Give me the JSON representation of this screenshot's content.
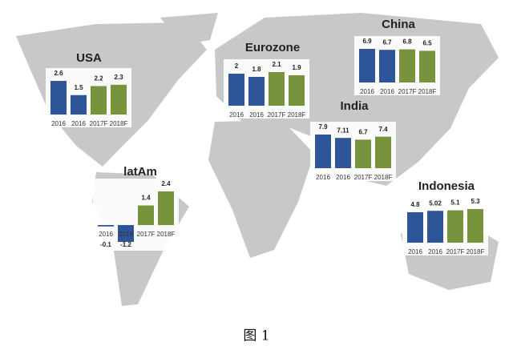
{
  "chart_data": [
    {
      "type": "bar",
      "title": "USA",
      "categories": [
        "2016",
        "2016",
        "2017F",
        "2018F"
      ],
      "values": [
        2.6,
        1.5,
        2.2,
        2.3
      ],
      "colors": [
        "#2e5597",
        "#2e5597",
        "#77933c",
        "#77933c"
      ]
    },
    {
      "type": "bar",
      "title": "Eurozone",
      "categories": [
        "2016",
        "2016",
        "2017F",
        "2018F"
      ],
      "values": [
        2,
        1.8,
        2.1,
        1.9
      ],
      "colors": [
        "#2e5597",
        "#2e5597",
        "#77933c",
        "#77933c"
      ]
    },
    {
      "type": "bar",
      "title": "China",
      "categories": [
        "2016",
        "2016",
        "2017F",
        "2018F"
      ],
      "values": [
        6.9,
        6.7,
        6.8,
        6.5
      ],
      "colors": [
        "#2e5597",
        "#2e5597",
        "#77933c",
        "#77933c"
      ]
    },
    {
      "type": "bar",
      "title": "India",
      "categories": [
        "2016",
        "2016",
        "2017F",
        "2018F"
      ],
      "values": [
        7.9,
        7.11,
        6.7,
        7.4
      ],
      "colors": [
        "#2e5597",
        "#2e5597",
        "#77933c",
        "#77933c"
      ]
    },
    {
      "type": "bar",
      "title": "latAm",
      "categories": [
        "2016",
        "2016",
        "2017F",
        "2018F"
      ],
      "values": [
        -0.1,
        -1.2,
        1.4,
        2.4
      ],
      "colors": [
        "#2e5597",
        "#2e5597",
        "#77933c",
        "#77933c"
      ]
    },
    {
      "type": "bar",
      "title": "Indonesia",
      "categories": [
        "2016",
        "2016",
        "2017F",
        "2018F"
      ],
      "values": [
        4.8,
        5.02,
        5.1,
        5.3
      ],
      "colors": [
        "#2e5597",
        "#2e5597",
        "#77933c",
        "#77933c"
      ]
    }
  ],
  "caption": "图 1"
}
